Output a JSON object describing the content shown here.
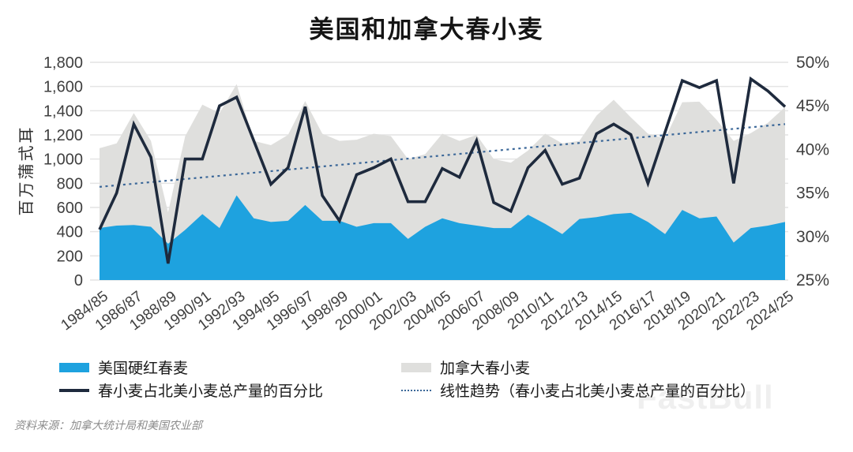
{
  "title": "美国和加拿大春小麦",
  "watermark": "FastBull",
  "source_note": "资料来源：加拿大统计局和美国农业部",
  "left_axis": {
    "title": "百万蒲式耳",
    "ticks": [
      "0",
      "200",
      "400",
      "600",
      "800",
      "1,000",
      "1,200",
      "1,400",
      "1,600",
      "1,800"
    ],
    "min": 0,
    "max": 1800,
    "step": 200
  },
  "right_axis": {
    "ticks": [
      "25%",
      "30%",
      "35%",
      "40%",
      "45%",
      "50%"
    ],
    "min": 25,
    "max": 50,
    "step": 5
  },
  "legend": {
    "items": [
      {
        "label": "美国硬红春麦",
        "type": "area",
        "color": "#1ea2df"
      },
      {
        "label": "春小麦占北美小麦总产量的百分比",
        "type": "line",
        "color": "#1e2a3d"
      },
      {
        "label": "加拿大春小麦",
        "type": "area",
        "color": "#dfdfdd"
      },
      {
        "label": "线性趋势（春小麦占北美小麦总产量的百分比）",
        "type": "dotted-line",
        "color": "#3c6899"
      }
    ]
  },
  "colors": {
    "us_area": "#1ea2df",
    "canada_area": "#dfdfdd",
    "pct_line": "#1e2a3d",
    "trend_line": "#3c6899",
    "grid": "#e4e4e4",
    "axis_text": "#3f3f3f",
    "x_label_text": "#404040"
  },
  "chart_data": {
    "type": "area",
    "subtype": "combo: two areas (left axis) + line and linear trend (right axis)",
    "title": "美国和加拿大春小麦",
    "ylabel_left": "百万蒲式耳",
    "ylim_left": [
      0,
      1800
    ],
    "ylim_right_percent": [
      25,
      50
    ],
    "grid": "horizontal",
    "legend_position": "bottom",
    "categories": [
      "1984/85",
      "1985/86",
      "1986/87",
      "1987/88",
      "1988/89",
      "1989/90",
      "1990/91",
      "1991/92",
      "1992/93",
      "1993/94",
      "1994/95",
      "1995/96",
      "1996/97",
      "1997/98",
      "1998/99",
      "1999/00",
      "2000/01",
      "2001/02",
      "2002/03",
      "2003/04",
      "2004/05",
      "2005/06",
      "2006/07",
      "2007/08",
      "2008/09",
      "2009/10",
      "2010/11",
      "2011/12",
      "2012/13",
      "2013/14",
      "2014/15",
      "2015/16",
      "2016/17",
      "2017/18",
      "2018/19",
      "2019/20",
      "2020/21",
      "2021/22",
      "2022/23",
      "2023/24",
      "2024/25"
    ],
    "x_tick_labels": [
      "1984/85",
      "1986/87",
      "1988/89",
      "1990/91",
      "1992/93",
      "1994/95",
      "1996/97",
      "1998/99",
      "2000/01",
      "2002/03",
      "2004/05",
      "2006/07",
      "2008/09",
      "2010/11",
      "2012/13",
      "2014/15",
      "2016/17",
      "2018/19",
      "2020/21",
      "2022/23",
      "2024/25"
    ],
    "series": [
      {
        "name": "美国硬红春麦",
        "type": "area",
        "axis": "left",
        "unit": "百万蒲式耳",
        "color": "#1ea2df",
        "values": [
          430,
          450,
          455,
          440,
          300,
          415,
          545,
          430,
          700,
          510,
          480,
          490,
          620,
          490,
          490,
          440,
          470,
          470,
          340,
          440,
          510,
          470,
          450,
          430,
          430,
          540,
          465,
          380,
          505,
          520,
          545,
          555,
          480,
          380,
          580,
          510,
          525,
          310,
          430,
          450,
          480
        ]
      },
      {
        "name": "加拿大春小麦",
        "type": "area",
        "axis": "left",
        "unit": "百万蒲式耳",
        "color": "#dfdfdd",
        "values": [
          1090,
          1130,
          1380,
          1150,
          560,
          1190,
          1450,
          1380,
          1620,
          1150,
          1115,
          1200,
          1480,
          1210,
          1150,
          1160,
          1210,
          1190,
          1000,
          1040,
          1210,
          1150,
          1200,
          1000,
          970,
          1070,
          1210,
          1130,
          1150,
          1360,
          1490,
          1345,
          1210,
          1170,
          1470,
          1475,
          1325,
          1150,
          1215,
          1300,
          1430
        ]
      },
      {
        "name": "春小麦占北美小麦总产量的百分比",
        "type": "line",
        "axis": "right",
        "unit": "%",
        "color": "#1e2a3d",
        "values": [
          30.8,
          35.0,
          42.9,
          39.1,
          26.9,
          38.9,
          38.9,
          45.0,
          46.0,
          41.0,
          36.0,
          37.9,
          44.9,
          34.7,
          31.8,
          37.1,
          37.9,
          38.9,
          34.0,
          34.0,
          37.8,
          36.8,
          41.0,
          33.9,
          32.9,
          37.9,
          39.9,
          36.0,
          36.7,
          41.8,
          42.9,
          41.7,
          36.1,
          42.0,
          47.9,
          47.1,
          47.9,
          36.1,
          48.1,
          46.7,
          44.9
        ]
      },
      {
        "name": "线性趋势（春小麦占北美小麦总产量的百分比）",
        "type": "dotted-line",
        "axis": "right",
        "unit": "%",
        "color": "#3c6899",
        "trend_start": 35.7,
        "trend_end": 42.9
      }
    ]
  }
}
